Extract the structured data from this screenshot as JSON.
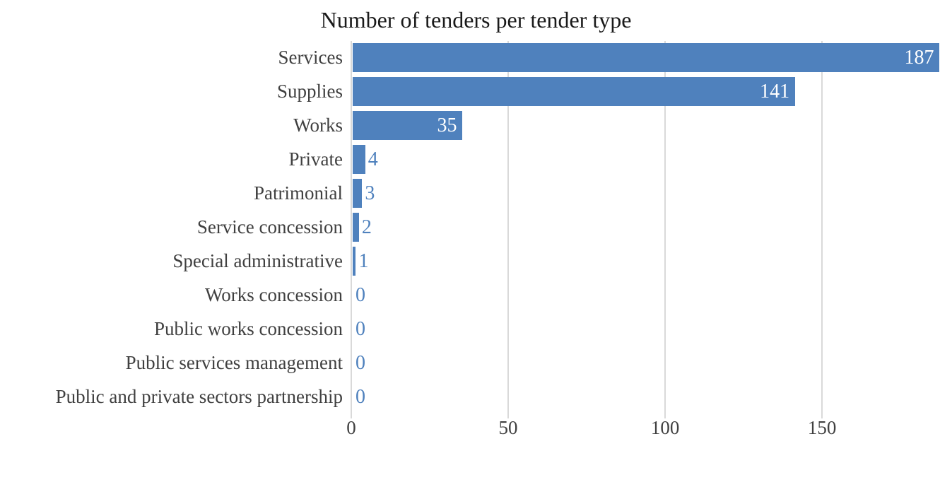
{
  "chart_data": {
    "type": "bar",
    "orientation": "horizontal",
    "title": "Number of tenders per tender type",
    "categories": [
      "Services",
      "Supplies",
      "Works",
      "Private",
      "Patrimonial",
      "Service concession",
      "Special administrative",
      "Works concession",
      "Public works concession",
      "Public services management",
      "Public and private sectors partnership"
    ],
    "values": [
      187,
      141,
      35,
      4,
      3,
      2,
      1,
      0,
      0,
      0,
      0
    ],
    "x_ticks": [
      0,
      50,
      100,
      150
    ],
    "xlim": [
      0,
      191.4
    ],
    "xlabel": "",
    "ylabel": "",
    "grid": "vertical-only",
    "legend": "none",
    "data_labels": "shown",
    "colors": {
      "bar": "#4f81bd",
      "value_label_inside": "#ffffff",
      "value_label_outside": "#4f81bd",
      "axis_text": "#404040",
      "title_text": "#1a1a1a",
      "gridline": "#d9d9d9",
      "background": "#ffffff"
    }
  }
}
